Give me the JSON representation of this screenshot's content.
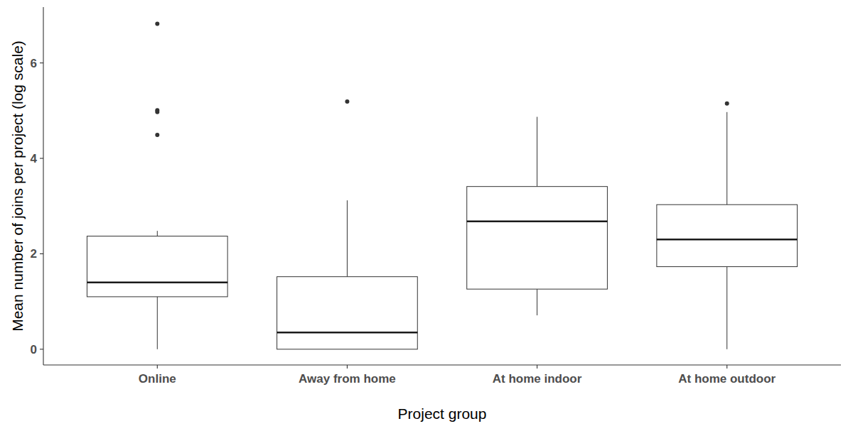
{
  "chart_data": {
    "type": "box",
    "x_label": "Project group",
    "y_label": "Mean number of joins per project (log scale)",
    "categories": [
      "Online",
      "Away from home",
      "At home indoor",
      "At home outdoor"
    ],
    "whisker_low": [
      0,
      0,
      0.71,
      0
    ],
    "q1": [
      1.1,
      0,
      1.26,
      1.73
    ],
    "median": [
      1.4,
      0.35,
      2.68,
      2.3
    ],
    "q3": [
      2.37,
      1.52,
      3.41,
      3.03
    ],
    "whisker_high": [
      2.48,
      3.12,
      4.87,
      4.97
    ],
    "outliers": [
      [
        6.82,
        5.01,
        4.97,
        4.49
      ],
      [
        5.19
      ],
      [],
      [
        5.15
      ]
    ],
    "color": "#333333",
    "ylim": [
      -0.33,
      7.17
    ],
    "yticks": [
      0,
      2,
      4,
      6
    ],
    "grid": false
  }
}
